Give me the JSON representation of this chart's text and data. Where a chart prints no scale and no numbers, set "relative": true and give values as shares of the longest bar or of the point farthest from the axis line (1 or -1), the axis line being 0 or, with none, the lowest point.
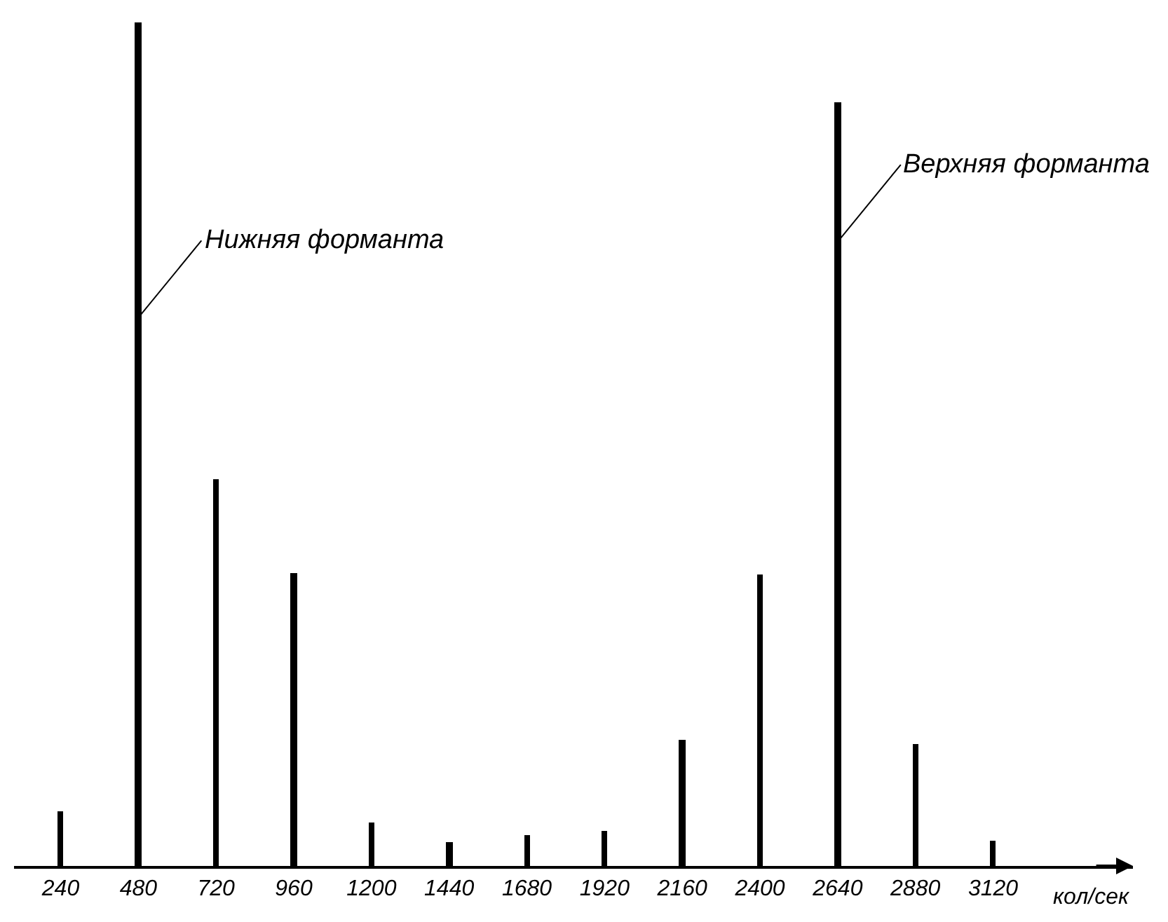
{
  "chart_data": {
    "type": "bar",
    "relative": true,
    "xlabel": "кол/сек",
    "categories": [
      "240",
      "480",
      "720",
      "960",
      "1200",
      "1440",
      "1680",
      "1920",
      "2160",
      "2400",
      "2640",
      "2880",
      "3120"
    ],
    "values": [
      0.064,
      1,
      0.459,
      0.347,
      0.051,
      0.028,
      0.036,
      0.042,
      0.149,
      0.345,
      0.905,
      0.145,
      0.03
    ],
    "color": "#000000",
    "annotations": [
      {
        "text": "Нижняя форманта",
        "x": "480",
        "y": 0.65
      },
      {
        "text": "Верхняя форманта",
        "x": "2640",
        "y": 0.74
      }
    ],
    "legend": false
  }
}
